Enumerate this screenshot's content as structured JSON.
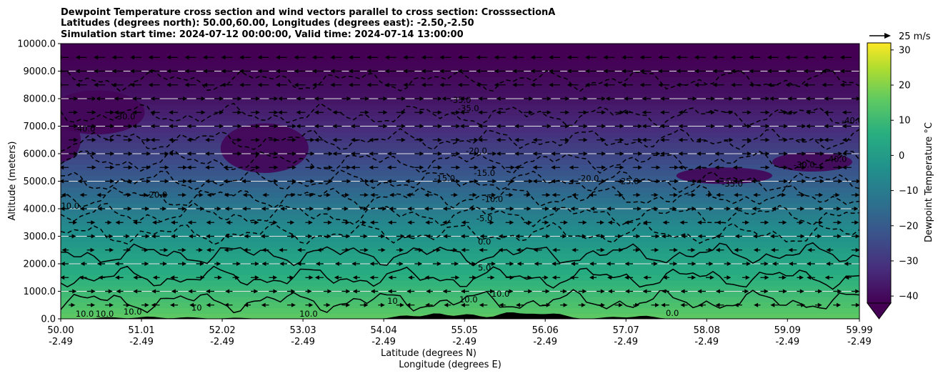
{
  "chart_data": {
    "type": "contourf",
    "title": [
      "Dewpoint Temperature cross section and wind vectors parallel to cross section: CrosssectionA",
      "Latitudes (degrees north): 50.00,60.00, Longitudes (degrees east): -2.50,-2.50",
      "Simulation start time: 2024-07-12 00:00:00, Valid time: 2024-07-14 13:00:00"
    ],
    "ylabel": "Altitude (meters)",
    "xlabel": "Latitude (degrees N)",
    "xlabel2": "Longitude (degrees E)",
    "ylim": [
      0,
      10000
    ],
    "xlim": [
      50.0,
      59.99
    ],
    "y_ticks": [
      "0.0",
      "1000.0",
      "2000.0",
      "3000.0",
      "4000.0",
      "5000.0",
      "6000.0",
      "7000.0",
      "8000.0",
      "9000.0",
      "10000.0"
    ],
    "y_tick_values": [
      0,
      1000,
      2000,
      3000,
      4000,
      5000,
      6000,
      7000,
      8000,
      9000,
      10000
    ],
    "x_tick_values": [
      50.0,
      51.01,
      52.02,
      53.03,
      54.04,
      55.05,
      56.06,
      57.07,
      58.08,
      59.09,
      59.99
    ],
    "x_ticks_lat": [
      "50.00",
      "51.01",
      "52.02",
      "53.03",
      "54.04",
      "55.05",
      "56.06",
      "57.07",
      "58.08",
      "59.09",
      "59.99"
    ],
    "x_ticks_lon": [
      "-2.49",
      "-2.49",
      "-2.49",
      "-2.49",
      "-2.49",
      "-2.49",
      "-2.49",
      "-2.49",
      "-2.49",
      "-2.49",
      "-2.49"
    ],
    "grid": "horizontal",
    "colorbar": {
      "label": "Dewpoint Temperature °C",
      "ticks": [
        "30",
        "20",
        "10",
        "0",
        "−10",
        "−20",
        "−30",
        "−40"
      ],
      "tick_values": [
        30,
        20,
        10,
        0,
        -10,
        -20,
        -30,
        -40
      ],
      "range": [
        -42,
        32
      ],
      "extend": "min",
      "colormap": "viridis"
    },
    "quiver_key": "25 m/s",
    "contour_levels": [
      -40,
      -35,
      -30,
      -25,
      -20,
      -15,
      -10,
      -5,
      0,
      5,
      10
    ],
    "contour_labels": [
      {
        "text": "-35.0",
        "lat": 55.0,
        "alt": 7850
      },
      {
        "text": "-35.0",
        "lat": 55.1,
        "alt": 7550
      },
      {
        "text": "-30.0",
        "lat": 50.8,
        "alt": 7250
      },
      {
        "text": "-20.0",
        "lat": 55.2,
        "alt": 6000
      },
      {
        "text": "-15.0",
        "lat": 54.8,
        "alt": 5000
      },
      {
        "text": "-15.0",
        "lat": 55.3,
        "alt": 5200
      },
      {
        "text": "-10.0",
        "lat": 55.4,
        "alt": 4250
      },
      {
        "text": "-5.0",
        "lat": 55.3,
        "alt": 3550
      },
      {
        "text": "0.0",
        "lat": 55.3,
        "alt": 2700
      },
      {
        "text": "5.0",
        "lat": 55.3,
        "alt": 1750
      },
      {
        "text": "10.0",
        "lat": 55.5,
        "alt": 800
      },
      {
        "text": "10.0",
        "lat": 55.1,
        "alt": 600
      },
      {
        "text": "-10.0",
        "lat": 50.1,
        "alt": 4000
      },
      {
        "text": "-20.0",
        "lat": 51.2,
        "alt": 4400
      },
      {
        "text": "-20.0",
        "lat": 56.6,
        "alt": 5000
      },
      {
        "text": "-25.0",
        "lat": 57.1,
        "alt": 4900
      },
      {
        "text": "-35.0",
        "lat": 58.4,
        "alt": 4800
      },
      {
        "text": "-30.0",
        "lat": 59.3,
        "alt": 5500
      },
      {
        "text": "-40.0",
        "lat": 59.7,
        "alt": 5700
      },
      {
        "text": "-40.0",
        "lat": 59.9,
        "alt": 7100
      },
      {
        "text": "-40.0",
        "lat": 50.3,
        "alt": 6800
      },
      {
        "text": "10.0",
        "lat": 50.3,
        "alt": 80
      },
      {
        "text": "10.0",
        "lat": 50.55,
        "alt": 80
      },
      {
        "text": "10.0",
        "lat": 50.9,
        "alt": 150
      },
      {
        "text": "10",
        "lat": 51.7,
        "alt": 300
      },
      {
        "text": "10.0",
        "lat": 53.1,
        "alt": 80
      },
      {
        "text": "10",
        "lat": 54.15,
        "alt": 550
      },
      {
        "text": "0.0",
        "lat": 57.65,
        "alt": 100
      }
    ]
  }
}
